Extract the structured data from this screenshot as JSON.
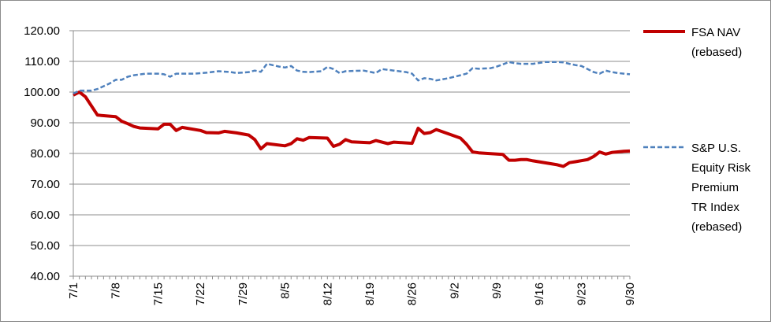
{
  "chart_data": {
    "type": "line",
    "title": "",
    "xlabel": "",
    "ylabel": "",
    "ylim": [
      40,
      120
    ],
    "y_ticks": [
      "40.00",
      "50.00",
      "60.00",
      "70.00",
      "80.00",
      "90.00",
      "100.00",
      "110.00",
      "120.00"
    ],
    "x_tick_labels": [
      "7/1",
      "7/8",
      "7/15",
      "7/22",
      "7/29",
      "8/5",
      "8/12",
      "8/19",
      "8/26",
      "9/2",
      "9/9",
      "9/16",
      "9/23",
      "9/30"
    ],
    "grid": "horizontal",
    "legend_position": "right",
    "series": [
      {
        "name_lines": [
          "FSA NAV",
          "(rebased)"
        ],
        "color": "#c00000",
        "style": "solid",
        "points": [
          [
            0,
            99
          ],
          [
            1,
            100
          ],
          [
            2,
            98.5
          ],
          [
            4,
            92.5
          ],
          [
            7,
            92
          ],
          [
            8,
            90.5
          ],
          [
            9,
            89.7
          ],
          [
            10,
            88.8
          ],
          [
            11,
            88.3
          ],
          [
            14,
            88
          ],
          [
            15,
            89.5
          ],
          [
            16,
            89.5
          ],
          [
            17,
            87.5
          ],
          [
            18,
            88.5
          ],
          [
            21,
            87.5
          ],
          [
            22,
            86.8
          ],
          [
            24,
            86.7
          ],
          [
            25,
            87.2
          ],
          [
            27,
            86.7
          ],
          [
            29,
            86
          ],
          [
            30,
            84.5
          ],
          [
            31,
            81.5
          ],
          [
            32,
            83.2
          ],
          [
            35,
            82.5
          ],
          [
            36,
            83.2
          ],
          [
            37,
            84.8
          ],
          [
            38,
            84.3
          ],
          [
            39,
            85.2
          ],
          [
            42,
            85
          ],
          [
            43,
            82.3
          ],
          [
            44,
            83
          ],
          [
            45,
            84.5
          ],
          [
            46,
            83.8
          ],
          [
            49,
            83.5
          ],
          [
            50,
            84.2
          ],
          [
            52,
            83.2
          ],
          [
            53,
            83.7
          ],
          [
            56,
            83.3
          ],
          [
            57,
            88.2
          ],
          [
            58,
            86.5
          ],
          [
            59,
            86.8
          ],
          [
            60,
            87.8
          ],
          [
            64,
            85
          ],
          [
            65,
            83
          ],
          [
            66,
            80.5
          ],
          [
            67,
            80.2
          ],
          [
            71,
            79.7
          ],
          [
            72,
            77.8
          ],
          [
            73,
            77.8
          ],
          [
            74,
            78
          ],
          [
            75,
            78
          ],
          [
            76,
            77.6
          ],
          [
            80,
            76.3
          ],
          [
            81,
            75.8
          ],
          [
            82,
            77
          ],
          [
            83,
            77.3
          ],
          [
            85,
            78
          ],
          [
            86,
            79
          ],
          [
            87,
            80.5
          ],
          [
            88,
            79.8
          ],
          [
            89,
            80.3
          ],
          [
            91,
            80.7
          ],
          [
            92,
            80.8
          ]
        ]
      },
      {
        "name_lines": [
          "S&P U.S.",
          "Equity Risk",
          "Premium",
          "TR Index",
          "(rebased)"
        ],
        "color": "#4f81bd",
        "style": "dashed",
        "points": [
          [
            0,
            99.5
          ],
          [
            1,
            100.5
          ],
          [
            3,
            100.5
          ],
          [
            4,
            101
          ],
          [
            6,
            102.8
          ],
          [
            7,
            104
          ],
          [
            8,
            104
          ],
          [
            9,
            105
          ],
          [
            10,
            105.5
          ],
          [
            12,
            106
          ],
          [
            14,
            106
          ],
          [
            15,
            105.8
          ],
          [
            16,
            105
          ],
          [
            17,
            106
          ],
          [
            20,
            106
          ],
          [
            22,
            106.3
          ],
          [
            24,
            106.8
          ],
          [
            26,
            106.5
          ],
          [
            27,
            106.2
          ],
          [
            29,
            106.5
          ],
          [
            30,
            107
          ],
          [
            31,
            106.6
          ],
          [
            32,
            109.2
          ],
          [
            34,
            108.3
          ],
          [
            35,
            108
          ],
          [
            36,
            108.5
          ],
          [
            37,
            107
          ],
          [
            38,
            106.6
          ],
          [
            39,
            106.5
          ],
          [
            41,
            106.8
          ],
          [
            42,
            108.2
          ],
          [
            43,
            107.5
          ],
          [
            44,
            106.2
          ],
          [
            45,
            106.8
          ],
          [
            48,
            107
          ],
          [
            50,
            106.2
          ],
          [
            51,
            107.5
          ],
          [
            53,
            107
          ],
          [
            55,
            106.5
          ],
          [
            56,
            106
          ],
          [
            57,
            103.8
          ],
          [
            58,
            104.5
          ],
          [
            59,
            104.3
          ],
          [
            60,
            103.8
          ],
          [
            62,
            104.5
          ],
          [
            63,
            105
          ],
          [
            64,
            105.5
          ],
          [
            65,
            106
          ],
          [
            66,
            107.8
          ],
          [
            67,
            107.6
          ],
          [
            69,
            107.8
          ],
          [
            70,
            108.3
          ],
          [
            71,
            109
          ],
          [
            72,
            109.8
          ],
          [
            73,
            109.4
          ],
          [
            74,
            109.2
          ],
          [
            76,
            109.2
          ],
          [
            78,
            109.8
          ],
          [
            80,
            109.8
          ],
          [
            81,
            109.7
          ],
          [
            82,
            109.2
          ],
          [
            83,
            108.8
          ],
          [
            84,
            108.5
          ],
          [
            85,
            107.5
          ],
          [
            86,
            106.5
          ],
          [
            87,
            106
          ],
          [
            88,
            107
          ],
          [
            89,
            106.5
          ],
          [
            90,
            106.2
          ],
          [
            91,
            106
          ],
          [
            92,
            105.8
          ]
        ]
      }
    ]
  }
}
